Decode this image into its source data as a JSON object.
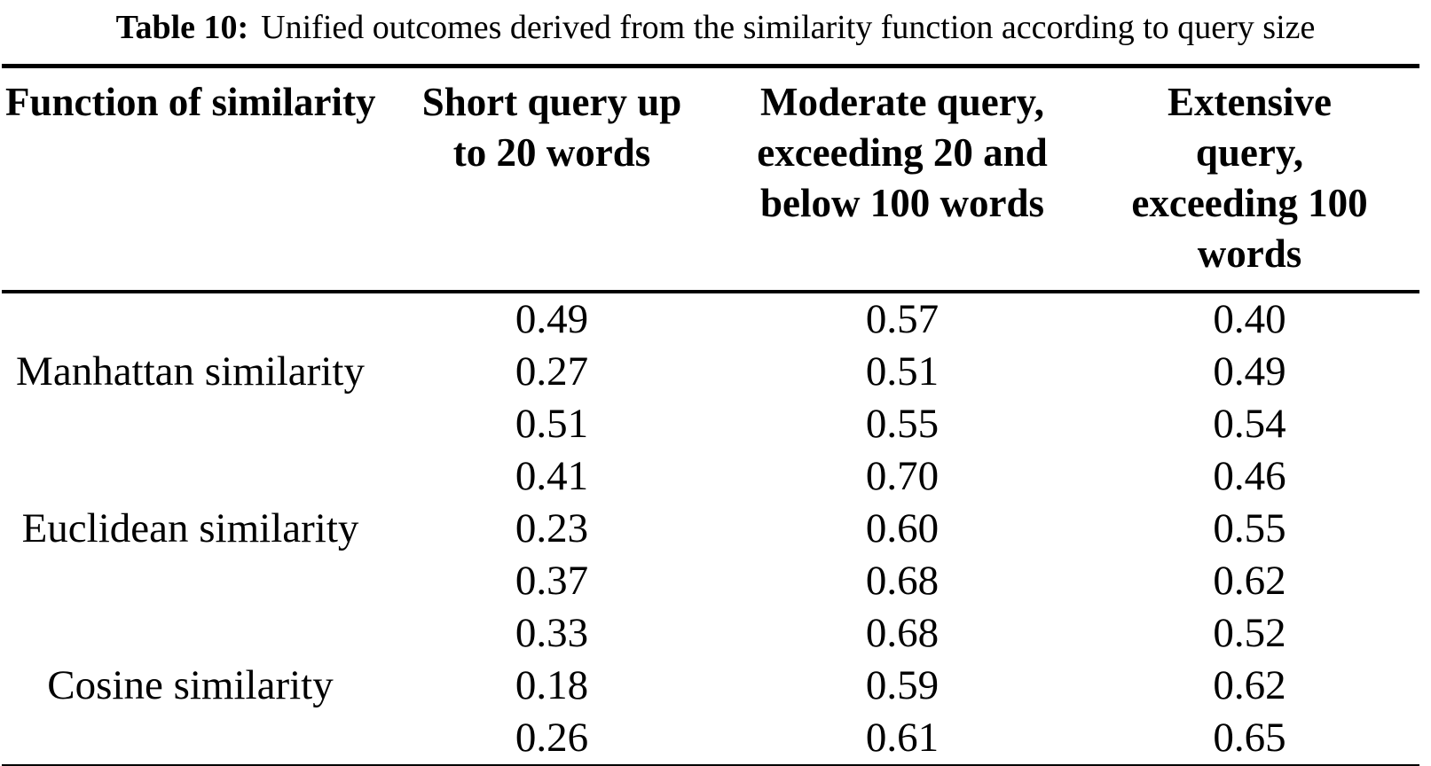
{
  "caption": {
    "label": "Table 10:",
    "text": "Unified outcomes derived from the similarity function according to query size"
  },
  "table": {
    "headers": [
      "Function of similarity",
      "Short query up\nto 20 words",
      "Moderate query,\nexceeding 20 and\nbelow 100 words",
      "Extensive\nquery,\nexceeding 100\nwords"
    ],
    "groups": [
      {
        "label": "Manhattan similarity",
        "rows": [
          [
            "0.49",
            "0.57",
            "0.40"
          ],
          [
            "0.27",
            "0.51",
            "0.49"
          ],
          [
            "0.51",
            "0.55",
            "0.54"
          ]
        ]
      },
      {
        "label": "Euclidean similarity",
        "rows": [
          [
            "0.41",
            "0.70",
            "0.46"
          ],
          [
            "0.23",
            "0.60",
            "0.55"
          ],
          [
            "0.37",
            "0.68",
            "0.62"
          ]
        ]
      },
      {
        "label": "Cosine similarity",
        "rows": [
          [
            "0.33",
            "0.68",
            "0.52"
          ],
          [
            "0.18",
            "0.59",
            "0.62"
          ],
          [
            "0.26",
            "0.61",
            "0.65"
          ]
        ]
      }
    ]
  },
  "colors": {
    "text": "#000000",
    "rule": "#000000",
    "background": "#ffffff"
  }
}
